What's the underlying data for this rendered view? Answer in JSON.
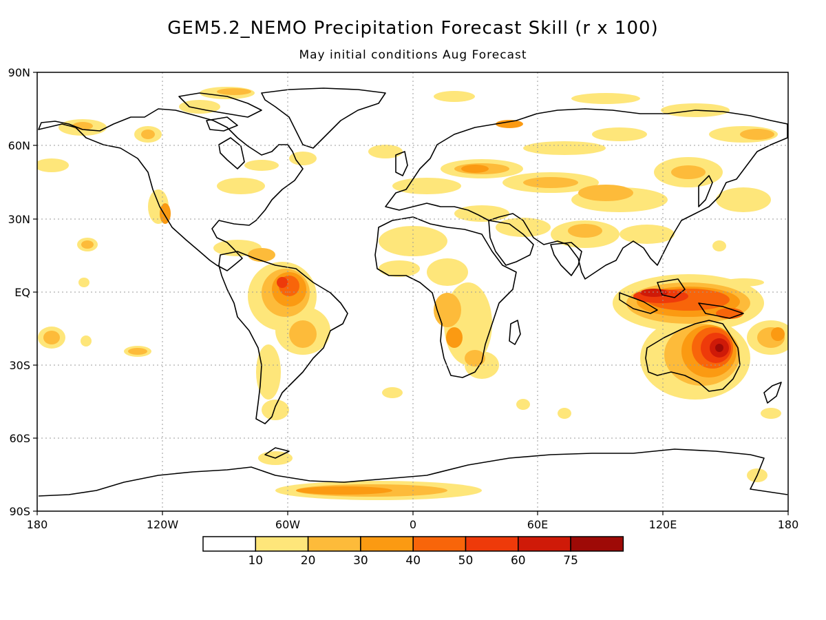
{
  "header": {
    "title": "GEM5.2_NEMO Precipitation Forecast Skill (r x 100)",
    "subtitle": "May initial conditions  Aug Forecast"
  },
  "axes": {
    "lat_labels": [
      "90N",
      "60N",
      "30N",
      "EQ",
      "30S",
      "60S",
      "90S"
    ],
    "lon_labels": [
      "180",
      "120W",
      "60W",
      "0",
      "60E",
      "120E",
      "180"
    ]
  },
  "colorbar": {
    "thresholds": [
      "10",
      "20",
      "30",
      "40",
      "50",
      "60",
      "75"
    ],
    "colors": [
      "#ffffff",
      "#fee67a",
      "#fdbb3a",
      "#fb9a12",
      "#f8650a",
      "#ee3a0a",
      "#cf1a08",
      "#9e0a06"
    ]
  },
  "map": {
    "coastline_color": "#000000",
    "gridline_color": "#999999"
  }
}
